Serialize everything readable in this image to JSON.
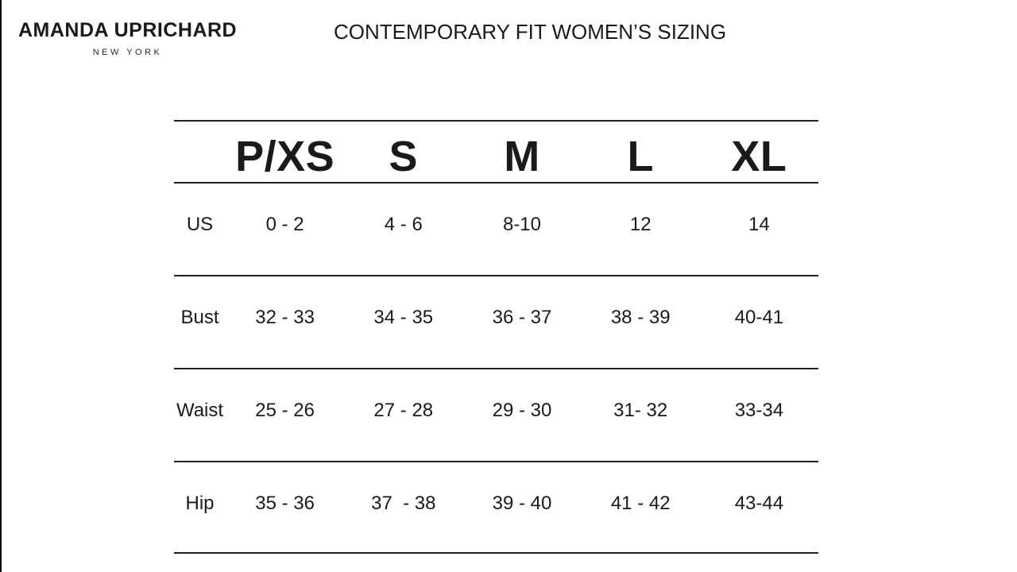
{
  "brand": {
    "name": "AMANDA UPRICHARD",
    "city": "NEW YORK"
  },
  "header": {
    "title": "CONTEMPORARY FIT WOMEN’S SIZING"
  },
  "chart_data": {
    "type": "table",
    "title": "CONTEMPORARY FIT WOMEN’S SIZING",
    "size_headers": [
      "P/XS",
      "S",
      "M",
      "L",
      "XL"
    ],
    "corner_label": "",
    "rows": [
      {
        "label": "US",
        "values": [
          "0 - 2",
          "4 - 6",
          "8-10",
          "12",
          "14"
        ]
      },
      {
        "label": "Bust",
        "values": [
          "32 - 33",
          "34 - 35",
          "36 - 37",
          "38 - 39",
          "40-41"
        ]
      },
      {
        "label": "Waist",
        "values": [
          "25 - 26",
          "27 - 28",
          "29 - 30",
          "31- 32",
          "33-34"
        ]
      },
      {
        "label": "Hip",
        "values": [
          "35 - 36",
          "37  - 38",
          "39 - 40",
          "41 - 42",
          "43-44"
        ]
      }
    ]
  },
  "colors": {
    "text": "#1a1a1a",
    "rule_line": "#222222",
    "background": "#ffffff"
  }
}
